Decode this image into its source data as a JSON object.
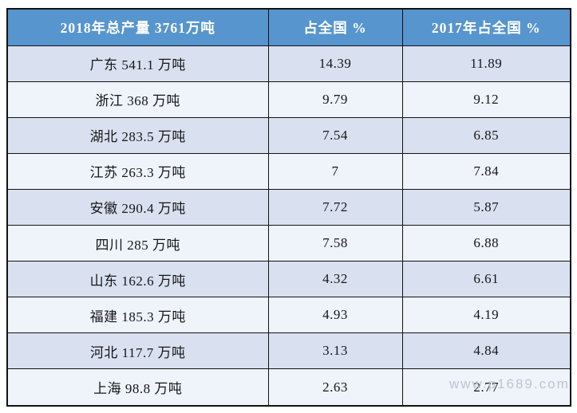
{
  "colors": {
    "header_bg": "#5795ce",
    "header_text": "#ffffff",
    "row_odd_bg": "#d9e1f1",
    "row_even_bg": "#eff3fa",
    "border": "#121212",
    "body_text": "#161616",
    "watermark": "#b6bccb",
    "page_bg": "#ffffff"
  },
  "watermark": {
    "text": "www.p1689.com"
  },
  "chart_data": {
    "type": "table",
    "title": "2018年总产量 3761万吨",
    "columns": [
      "2018年总产量 3761万吨",
      "占全国 %",
      "2017年占全国 %"
    ],
    "rows": [
      [
        "广东 541.1 万吨",
        "14.39",
        "11.89"
      ],
      [
        "浙江 368 万吨",
        "9.79",
        "9.12"
      ],
      [
        "湖北 283.5 万吨",
        "7.54",
        "6.85"
      ],
      [
        "江苏 263.3 万吨",
        "7",
        "7.84"
      ],
      [
        "安徽 290.4 万吨",
        "7.72",
        "5.87"
      ],
      [
        "四川 285 万吨",
        "7.58",
        "6.88"
      ],
      [
        "山东 162.6 万吨",
        "4.32",
        "6.61"
      ],
      [
        "福建 185.3 万吨",
        "4.93",
        "4.19"
      ],
      [
        "河北 117.7 万吨",
        "3.13",
        "4.84"
      ],
      [
        "上海 98.8 万吨",
        "2.63",
        "2.77"
      ]
    ],
    "records": [
      {
        "province": "广东",
        "output_wan_tons": 541.1,
        "share_2018_pct": 14.39,
        "share_2017_pct": 11.89
      },
      {
        "province": "浙江",
        "output_wan_tons": 368,
        "share_2018_pct": 9.79,
        "share_2017_pct": 9.12
      },
      {
        "province": "湖北",
        "output_wan_tons": 283.5,
        "share_2018_pct": 7.54,
        "share_2017_pct": 6.85
      },
      {
        "province": "江苏",
        "output_wan_tons": 263.3,
        "share_2018_pct": 7,
        "share_2017_pct": 7.84
      },
      {
        "province": "安徽",
        "output_wan_tons": 290.4,
        "share_2018_pct": 7.72,
        "share_2017_pct": 5.87
      },
      {
        "province": "四川",
        "output_wan_tons": 285,
        "share_2018_pct": 7.58,
        "share_2017_pct": 6.88
      },
      {
        "province": "山东",
        "output_wan_tons": 162.6,
        "share_2018_pct": 4.32,
        "share_2017_pct": 6.61
      },
      {
        "province": "福建",
        "output_wan_tons": 185.3,
        "share_2018_pct": 4.93,
        "share_2017_pct": 4.19
      },
      {
        "province": "河北",
        "output_wan_tons": 117.7,
        "share_2018_pct": 3.13,
        "share_2017_pct": 4.84
      },
      {
        "province": "上海",
        "output_wan_tons": 98.8,
        "share_2018_pct": 2.63,
        "share_2017_pct": 2.77
      }
    ],
    "total_2018_wan_tons": 3761,
    "year_current": 2018,
    "year_previous": 2017
  }
}
